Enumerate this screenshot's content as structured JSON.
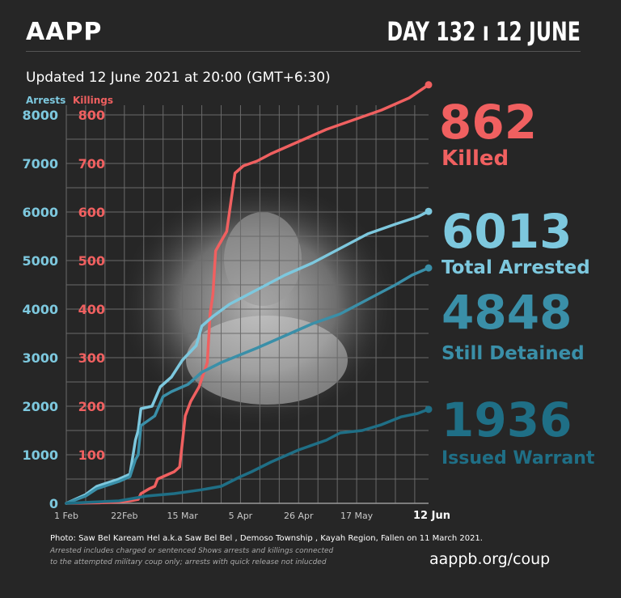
{
  "header": {
    "brand": "AAPP",
    "day_label": "DAY 132 ı 12 JUNE",
    "updated": "Updated 12 June 2021 at 20:00 (GMT+6:30)"
  },
  "stats": {
    "killed": {
      "value": "862",
      "label": "Killed"
    },
    "arrested": {
      "value": "6013",
      "label": "Total Arrested"
    },
    "detained": {
      "value": "4848",
      "label": "Still Detained"
    },
    "warrant": {
      "value": "1936",
      "label": "Issued Warrant"
    }
  },
  "footer": {
    "photo_credit": "Photo: Saw Bel Kaream Hel a.k.a Saw Bel Bel  , Demoso Township   , Kayah Region,  Fallen on 11 March 2021.",
    "note_line1": "Arrested includes charged or sentenced Shows arrests and killings connected",
    "note_line2": "to the attempted military coup only; arrests with quick release not inlucded",
    "url": "aappb.org/coup"
  },
  "colors": {
    "killings": "#f06060",
    "arrests": "#7dc8de",
    "detained": "#3a8fa8",
    "warrant": "#1f6f86",
    "background": "#262626",
    "grid": "#6a6a6a"
  },
  "chart_data": {
    "type": "line",
    "left_axis": {
      "label": "Arrests",
      "ticks": [
        0,
        1000,
        2000,
        3000,
        4000,
        5000,
        6000,
        7000,
        8000
      ],
      "range": [
        0,
        8200
      ]
    },
    "right_axis": {
      "label": "Killings",
      "ticks": [
        100,
        200,
        300,
        400,
        500,
        600,
        700,
        800
      ],
      "range": [
        0,
        820
      ]
    },
    "x_labels": [
      {
        "day": 1,
        "label": "1 Feb"
      },
      {
        "day": 22,
        "label": "22Feb"
      },
      {
        "day": 43,
        "label": "15 Mar"
      },
      {
        "day": 64,
        "label": "5 Apr"
      },
      {
        "day": 85,
        "label": "26 Apr"
      },
      {
        "day": 106,
        "label": "17 May"
      },
      {
        "day": 132,
        "label": "12 Jun"
      }
    ],
    "x_range": [
      1,
      132
    ],
    "series": [
      {
        "name": "Killings",
        "axis": "right",
        "color_key": "killings",
        "points": [
          [
            1,
            0
          ],
          [
            13,
            1
          ],
          [
            20,
            3
          ],
          [
            24,
            5
          ],
          [
            27,
            8
          ],
          [
            28,
            20
          ],
          [
            31,
            30
          ],
          [
            33,
            35
          ],
          [
            34,
            50
          ],
          [
            38,
            60
          ],
          [
            40,
            65
          ],
          [
            42,
            75
          ],
          [
            44,
            180
          ],
          [
            46,
            210
          ],
          [
            49,
            240
          ],
          [
            52,
            290
          ],
          [
            53,
            390
          ],
          [
            54,
            430
          ],
          [
            55,
            520
          ],
          [
            57,
            540
          ],
          [
            59,
            560
          ],
          [
            61,
            640
          ],
          [
            62,
            680
          ],
          [
            65,
            695
          ],
          [
            70,
            705
          ],
          [
            75,
            720
          ],
          [
            85,
            745
          ],
          [
            95,
            770
          ],
          [
            105,
            790
          ],
          [
            115,
            810
          ],
          [
            125,
            835
          ],
          [
            132,
            862
          ]
        ]
      },
      {
        "name": "Total Arrested",
        "axis": "left",
        "color_key": "arrests",
        "points": [
          [
            1,
            0
          ],
          [
            8,
            180
          ],
          [
            12,
            350
          ],
          [
            20,
            500
          ],
          [
            24,
            600
          ],
          [
            26,
            1300
          ],
          [
            27,
            1500
          ],
          [
            28,
            1950
          ],
          [
            32,
            2000
          ],
          [
            35,
            2400
          ],
          [
            39,
            2600
          ],
          [
            43,
            2950
          ],
          [
            48,
            3250
          ],
          [
            50,
            3650
          ],
          [
            54,
            3850
          ],
          [
            60,
            4100
          ],
          [
            70,
            4400
          ],
          [
            80,
            4700
          ],
          [
            90,
            4950
          ],
          [
            100,
            5250
          ],
          [
            110,
            5550
          ],
          [
            120,
            5750
          ],
          [
            128,
            5900
          ],
          [
            132,
            6013
          ]
        ]
      },
      {
        "name": "Still Detained",
        "axis": "left",
        "color_key": "detained",
        "points": [
          [
            1,
            0
          ],
          [
            8,
            150
          ],
          [
            12,
            300
          ],
          [
            20,
            450
          ],
          [
            24,
            550
          ],
          [
            26,
            900
          ],
          [
            27,
            1000
          ],
          [
            28,
            1600
          ],
          [
            33,
            1800
          ],
          [
            36,
            2200
          ],
          [
            39,
            2300
          ],
          [
            45,
            2450
          ],
          [
            50,
            2700
          ],
          [
            57,
            2900
          ],
          [
            70,
            3200
          ],
          [
            80,
            3450
          ],
          [
            90,
            3700
          ],
          [
            100,
            3900
          ],
          [
            110,
            4200
          ],
          [
            120,
            4500
          ],
          [
            126,
            4700
          ],
          [
            132,
            4848
          ]
        ]
      },
      {
        "name": "Issued Warrant",
        "axis": "left",
        "color_key": "warrant",
        "points": [
          [
            1,
            0
          ],
          [
            20,
            50
          ],
          [
            30,
            150
          ],
          [
            40,
            200
          ],
          [
            50,
            280
          ],
          [
            57,
            350
          ],
          [
            64,
            550
          ],
          [
            68,
            650
          ],
          [
            75,
            850
          ],
          [
            85,
            1100
          ],
          [
            95,
            1300
          ],
          [
            100,
            1450
          ],
          [
            108,
            1500
          ],
          [
            115,
            1620
          ],
          [
            122,
            1780
          ],
          [
            128,
            1850
          ],
          [
            132,
            1936
          ]
        ]
      }
    ]
  }
}
